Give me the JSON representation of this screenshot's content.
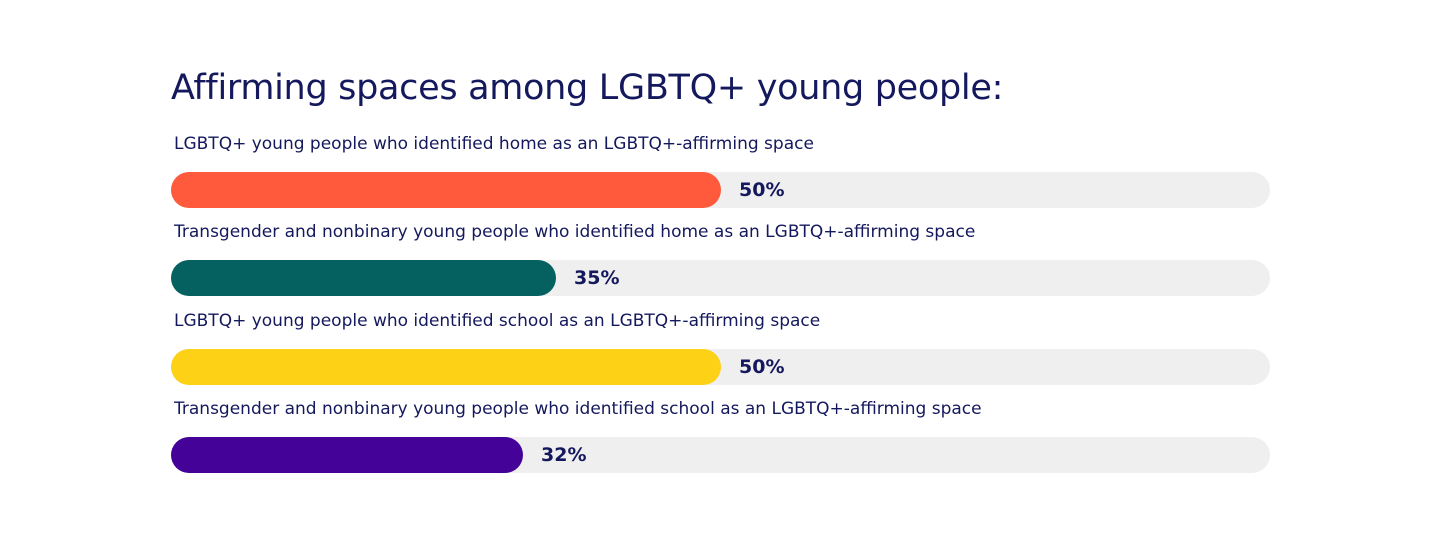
{
  "chart_data": {
    "type": "bar",
    "orientation": "horizontal",
    "title": "Affirming spaces among LGBTQ+ young people:",
    "categories": [
      "LGBTQ+ young people who identified home as an LGBTQ+-affirming space",
      "Transgender and nonbinary young people who identified home as an LGBTQ+-affirming space",
      "LGBTQ+ young people who identified school as an LGBTQ+-affirming space",
      "Transgender and nonbinary young people who identified school as an LGBTQ+-affirming space"
    ],
    "values": [
      50,
      35,
      50,
      32
    ],
    "value_labels": [
      "50%",
      "35%",
      "50%",
      "32%"
    ],
    "colors": [
      "#ff5a3c",
      "#05615f",
      "#fdd116",
      "#440299"
    ],
    "track_color": "#efefef",
    "xlim": [
      0,
      100
    ],
    "grid": false,
    "legend": false
  }
}
